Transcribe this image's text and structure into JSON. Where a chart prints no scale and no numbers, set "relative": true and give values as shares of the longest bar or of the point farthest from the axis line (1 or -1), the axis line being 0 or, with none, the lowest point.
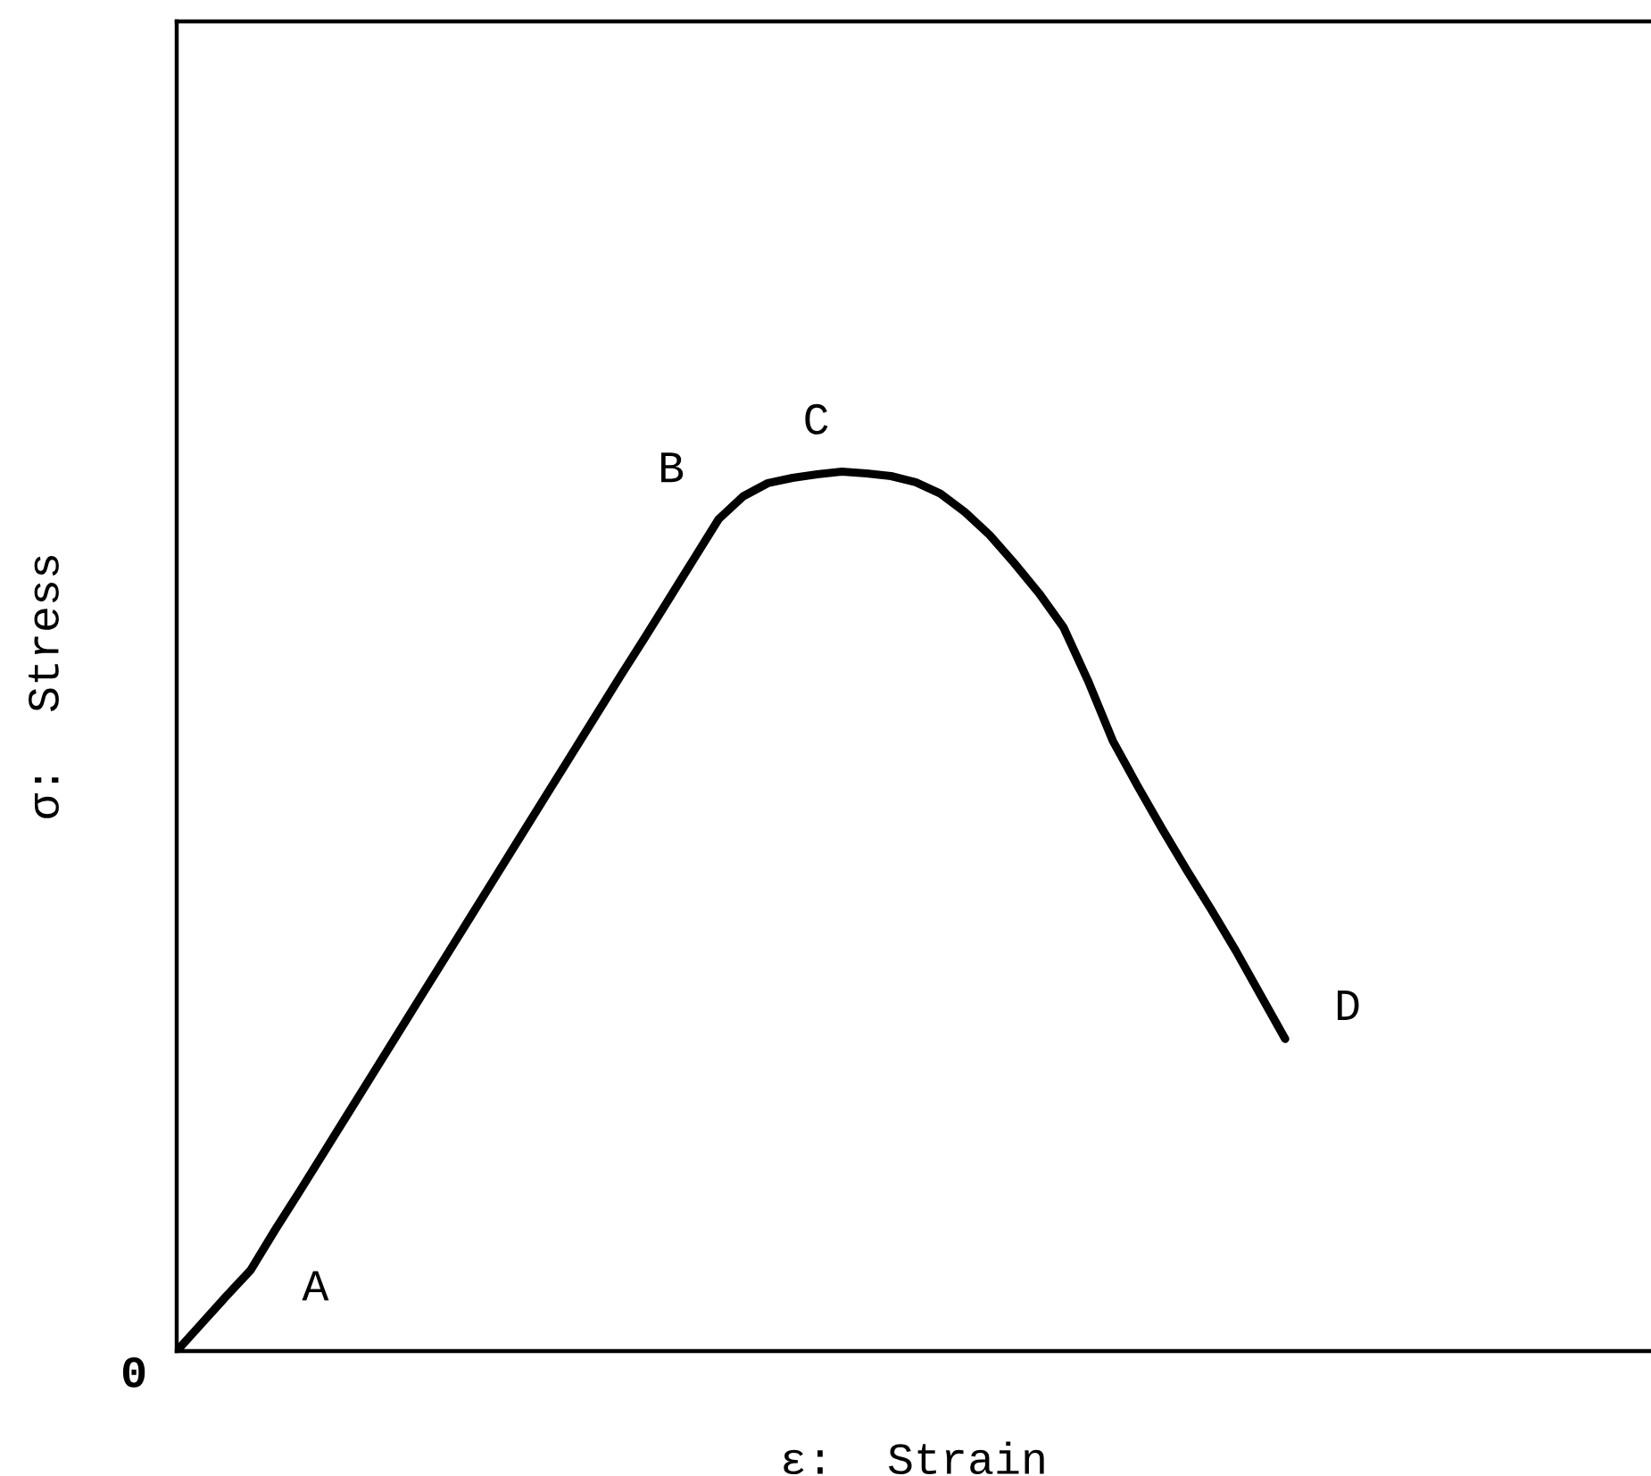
{
  "chart_data": {
    "type": "line",
    "xlabel": "ε:  Strain",
    "ylabel": "σ:  Stress",
    "relative": true,
    "line_style": "solid",
    "categories": [
      null,
      null,
      null,
      null,
      null,
      null,
      null,
      null,
      null,
      null,
      null,
      null,
      null,
      null,
      null,
      null,
      null,
      null,
      null,
      null,
      null,
      null,
      null,
      null,
      null,
      null,
      null,
      null,
      null,
      null,
      null,
      null,
      null,
      null,
      null,
      null,
      null,
      null,
      null,
      null,
      null,
      null,
      null,
      null,
      null,
      null
    ],
    "series": [
      {
        "color": "#000000",
        "values": [
          0,
          0.031,
          0.062,
          0.092,
          0.138,
          0.182,
          0.227,
          0.272,
          0.317,
          0.362,
          0.407,
          0.452,
          0.497,
          0.542,
          0.587,
          0.632,
          0.677,
          0.722,
          0.767,
          0.811,
          0.856,
          0.901,
          0.946,
          0.972,
          0.987,
          0.993,
          0.997,
          1.0,
          0.998,
          0.995,
          0.988,
          0.975,
          0.954,
          0.928,
          0.896,
          0.862,
          0.823,
          0.762,
          0.694,
          0.643,
          0.594,
          0.547,
          0.502,
          0.455,
          0.405,
          0.355
        ]
      }
    ],
    "annotations": [
      "A",
      "B",
      "C",
      "D",
      "0"
    ]
  }
}
